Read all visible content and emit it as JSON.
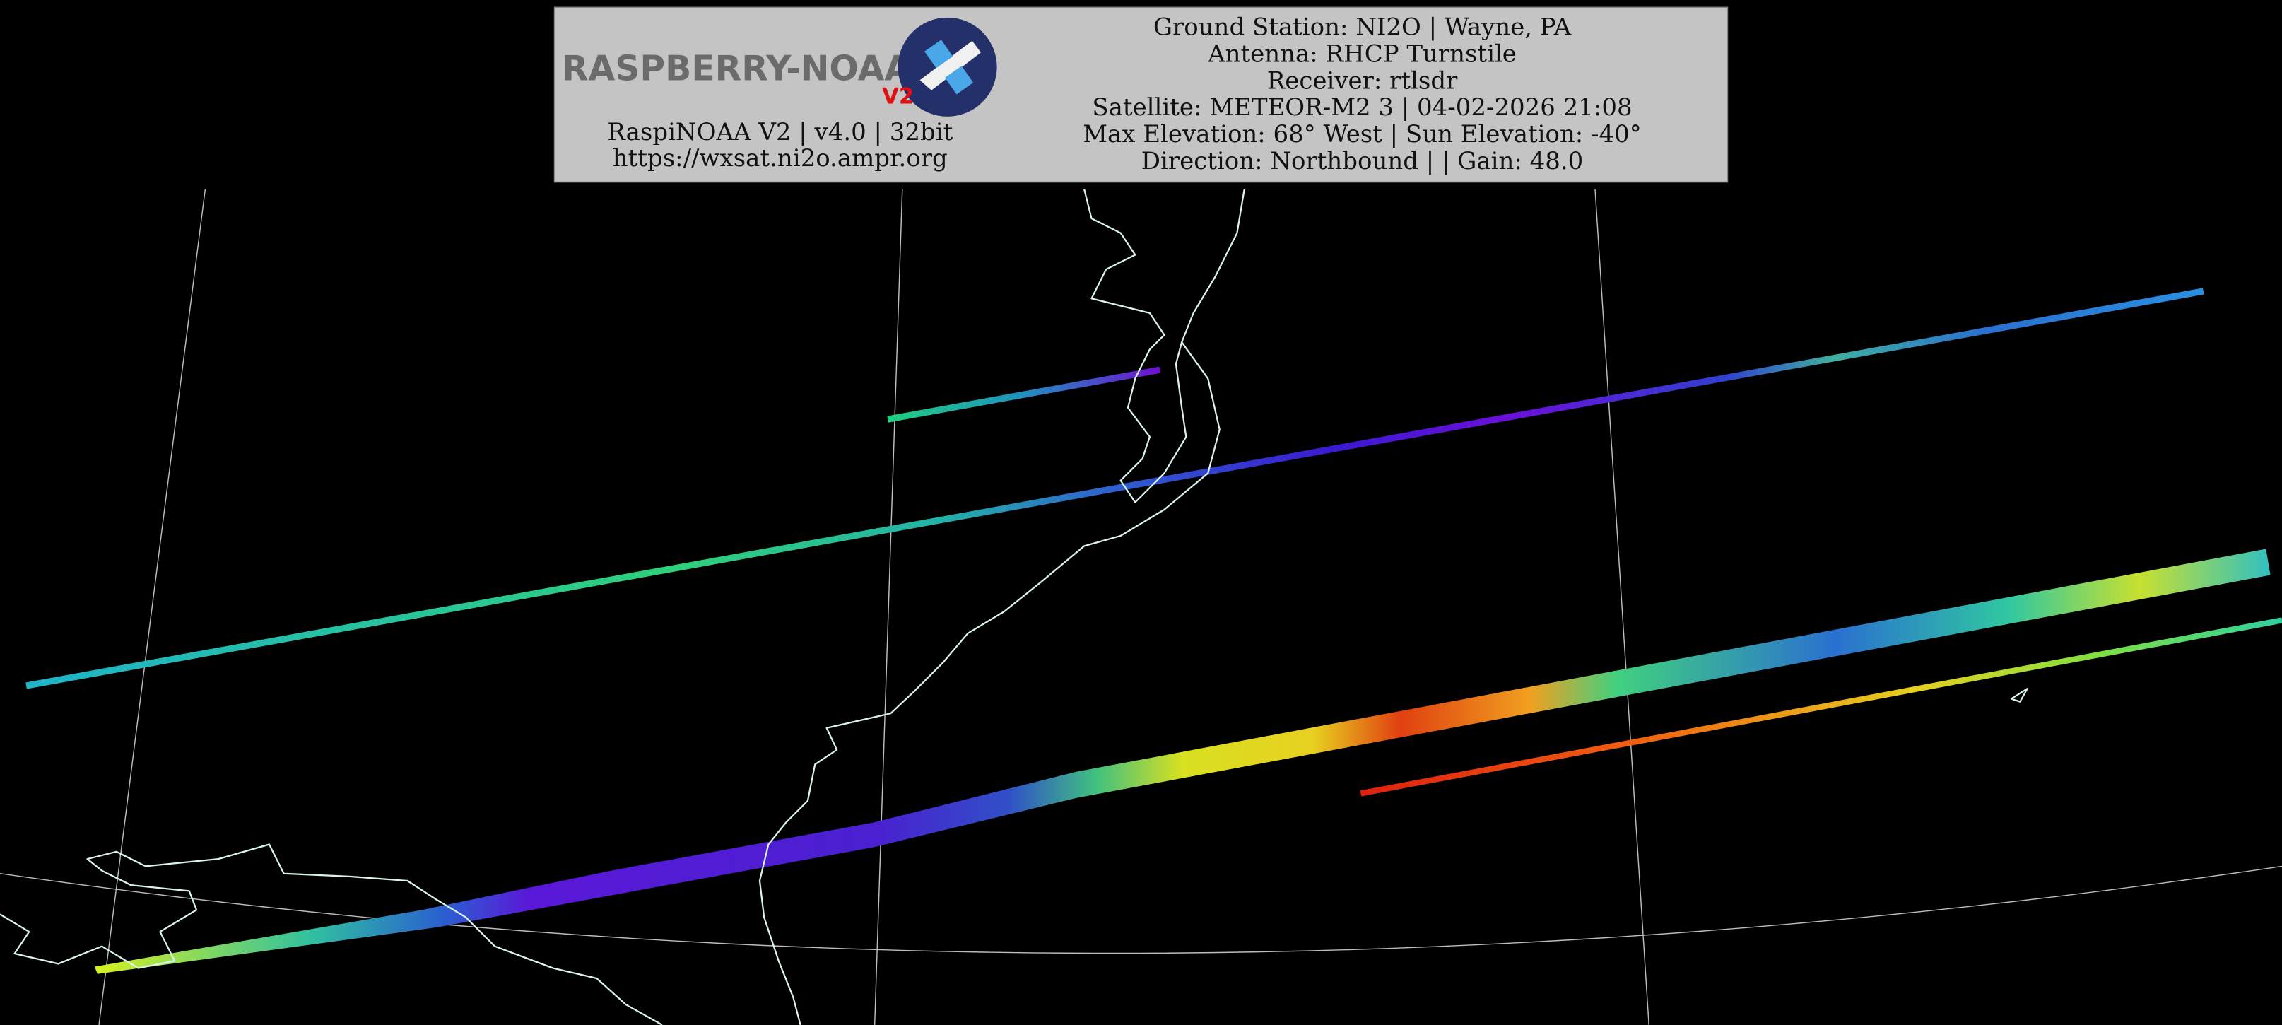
{
  "header": {
    "logo": {
      "title": "RASPBERRY-NOAA",
      "badge": "V2"
    },
    "software": "RaspiNOAA V2 | v4.0 | 32bit",
    "url": "https://wxsat.ni2o.ampr.org",
    "details": [
      "Ground Station: NI2O | Wayne, PA",
      "Antenna: RHCP Turnstile",
      "Receiver: rtlsdr",
      "Satellite: METEOR-M2 3 | 04-02-2026 21:08",
      "Max Elevation: 68° West | Sun Elevation: -40°",
      "Direction: Northbound | | Gain: 48.0"
    ]
  }
}
